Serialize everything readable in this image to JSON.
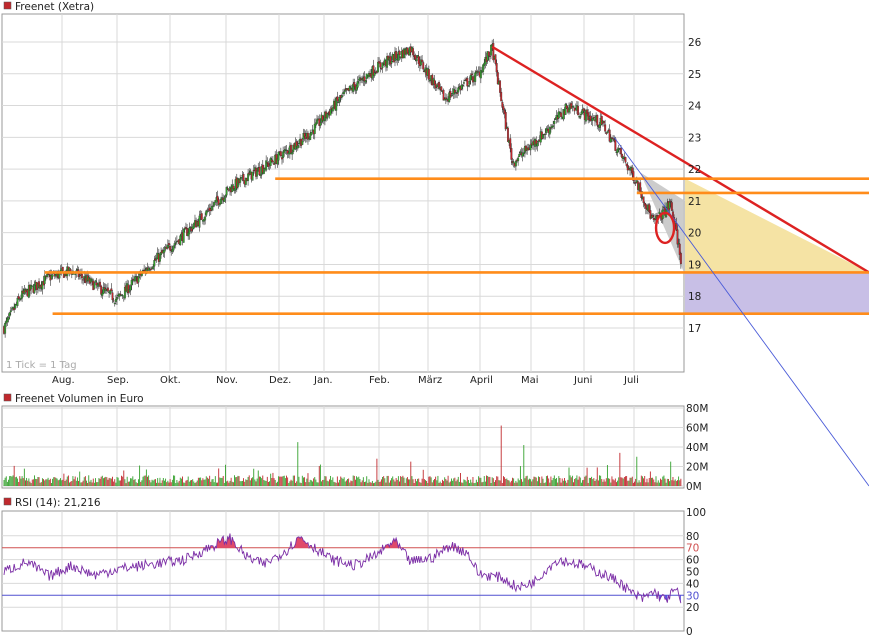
{
  "colors": {
    "background": "#ffffff",
    "grid": "#d9d9d9",
    "panel_border": "#999999",
    "candle_up": "#33a02c",
    "candle_down": "#c0282d",
    "trend_red": "#dd2222",
    "support_orange": "#ff8c1a",
    "thin_trend": "#4a5bd8",
    "triangle_fill": "#f5e3a4",
    "gray_fill": "#c6c6c6",
    "lavender_fill": "#c8bfe6",
    "rsi_line": "#7b2ea6",
    "rsi_over": "#e04a6a",
    "rsi_under": "#5a50e0",
    "hline_70": "#d05050",
    "hline_30": "#5050d0"
  },
  "chart_data": [
    {
      "type": "candlestick",
      "legend": "Freenet (Xetra)",
      "note": "1 Tick = 1 Tag",
      "x_labels": [
        "Aug.",
        "Sep.",
        "Okt.",
        "Nov.",
        "Dez.",
        "Jan.",
        "Feb.",
        "März",
        "April",
        "Mai",
        "Juni",
        "Juli"
      ],
      "y_ticks": [
        "17",
        "18",
        "19",
        "20",
        "21",
        "22",
        "23",
        "24",
        "25",
        "26"
      ],
      "ylim": [
        16.7,
        26.8
      ],
      "key_closes": [
        [
          0,
          17.0
        ],
        [
          15,
          18.0
        ],
        [
          40,
          18.6
        ],
        [
          60,
          18.8
        ],
        [
          100,
          17.9
        ],
        [
          130,
          19.0
        ],
        [
          170,
          20.3
        ],
        [
          200,
          21.4
        ],
        [
          240,
          22.3
        ],
        [
          270,
          23.1
        ],
        [
          300,
          24.3
        ],
        [
          330,
          25.2
        ],
        [
          360,
          25.8
        ],
        [
          390,
          24.2
        ],
        [
          420,
          25.0
        ],
        [
          432,
          25.8
        ],
        [
          450,
          22.2
        ],
        [
          480,
          23.2
        ],
        [
          500,
          24.0
        ],
        [
          530,
          23.4
        ],
        [
          560,
          21.6
        ],
        [
          575,
          20.3
        ],
        [
          590,
          20.9
        ],
        [
          600,
          19.0
        ]
      ],
      "annotations": {
        "downtrend_red": [
          [
            432,
            25.85
          ],
          [
            1000,
            18.7
          ]
        ],
        "support_lines": [
          21.7,
          21.25,
          18.7,
          17.45
        ],
        "thin_blue_trend": [
          [
            440,
            25.5
          ],
          [
            1000,
            14.0
          ]
        ],
        "red_circle_center": [
          585,
          20.15
        ]
      }
    },
    {
      "type": "bar",
      "legend": "Freenet Volumen in Euro",
      "y_ticks": [
        "0M",
        "20M",
        "40M",
        "60M",
        "80M"
      ],
      "ylim": [
        0,
        80
      ],
      "spikes": [
        [
          120,
          21
        ],
        [
          190,
          18
        ],
        [
          260,
          45
        ],
        [
          280,
          22
        ],
        [
          330,
          28
        ],
        [
          360,
          25
        ],
        [
          440,
          62
        ],
        [
          460,
          42
        ],
        [
          500,
          19
        ],
        [
          545,
          34
        ],
        [
          560,
          30
        ],
        [
          590,
          25
        ]
      ]
    },
    {
      "type": "line",
      "legend": "RSI (14): 21,216",
      "y_ticks": [
        "0",
        "20",
        "30",
        "40",
        "50",
        "60",
        "70",
        "80",
        "100"
      ],
      "ylim": [
        0,
        100
      ],
      "levels": [
        70,
        30
      ],
      "key_values": [
        [
          0,
          50
        ],
        [
          20,
          58
        ],
        [
          40,
          46
        ],
        [
          60,
          55
        ],
        [
          80,
          47
        ],
        [
          100,
          52
        ],
        [
          130,
          56
        ],
        [
          160,
          60
        ],
        [
          190,
          74
        ],
        [
          200,
          78
        ],
        [
          215,
          62
        ],
        [
          230,
          56
        ],
        [
          250,
          68
        ],
        [
          262,
          79
        ],
        [
          275,
          70
        ],
        [
          290,
          60
        ],
        [
          310,
          55
        ],
        [
          330,
          64
        ],
        [
          345,
          76
        ],
        [
          360,
          58
        ],
        [
          380,
          62
        ],
        [
          395,
          72
        ],
        [
          410,
          66
        ],
        [
          420,
          48
        ],
        [
          440,
          45
        ],
        [
          455,
          36
        ],
        [
          470,
          42
        ],
        [
          480,
          52
        ],
        [
          490,
          60
        ],
        [
          510,
          56
        ],
        [
          530,
          48
        ],
        [
          545,
          41
        ],
        [
          555,
          32
        ],
        [
          565,
          27
        ],
        [
          575,
          33
        ],
        [
          585,
          26
        ],
        [
          595,
          35
        ],
        [
          600,
          21
        ]
      ]
    }
  ]
}
